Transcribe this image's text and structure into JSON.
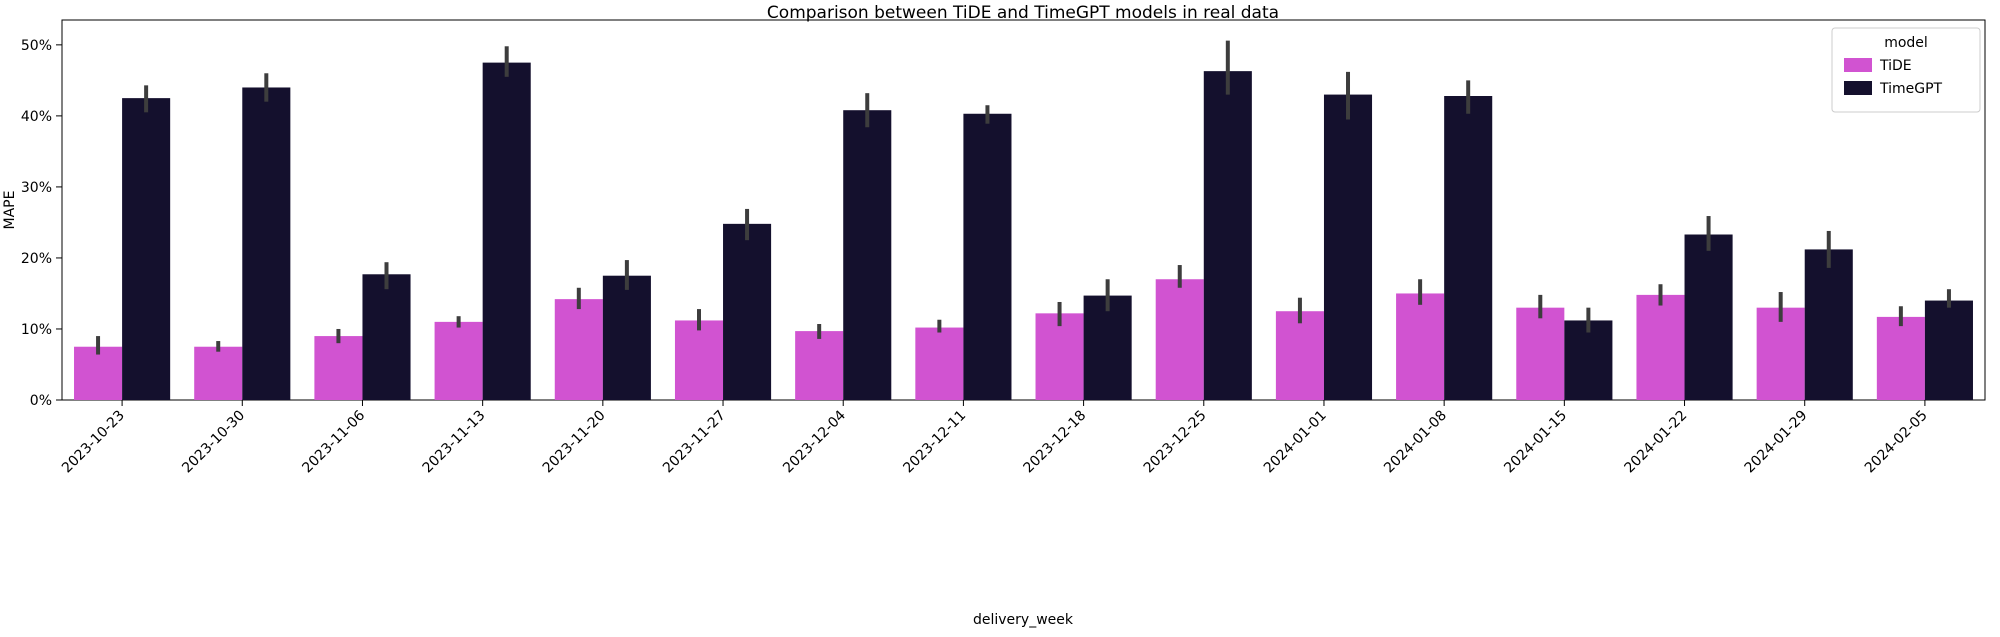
{
  "chart_data": {
    "type": "bar",
    "title": "Comparison between TiDE and TimeGPT models in real data",
    "xlabel": "delivery_week",
    "ylabel": "MAPE",
    "ylim": [
      0,
      53.5
    ],
    "yticks": [
      0,
      10,
      20,
      30,
      40,
      50
    ],
    "ytick_labels": [
      "0%",
      "10%",
      "20%",
      "30%",
      "40%",
      "50%"
    ],
    "grid": false,
    "legend_title": "model",
    "legend_position": "upper right",
    "error_bar_color": "#3d3d3d",
    "categories": [
      "2023-10-23",
      "2023-10-30",
      "2023-11-06",
      "2023-11-13",
      "2023-11-20",
      "2023-11-27",
      "2023-12-04",
      "2023-12-11",
      "2023-12-18",
      "2023-12-25",
      "2024-01-01",
      "2024-01-08",
      "2024-01-15",
      "2024-01-22",
      "2024-01-29",
      "2024-02-05"
    ],
    "series": [
      {
        "name": "TiDE",
        "color": "#d153d1",
        "values": [
          7.5,
          7.5,
          9.0,
          11.0,
          14.2,
          11.2,
          9.7,
          10.2,
          12.2,
          17.0,
          12.5,
          15.0,
          13.0,
          14.8,
          13.0,
          11.7
        ],
        "errors": [
          [
            6.4,
            9.0
          ],
          [
            6.8,
            8.3
          ],
          [
            8.0,
            10.0
          ],
          [
            10.2,
            11.8
          ],
          [
            12.8,
            15.8
          ],
          [
            9.8,
            12.8
          ],
          [
            8.6,
            10.7
          ],
          [
            9.5,
            11.3
          ],
          [
            10.4,
            13.8
          ],
          [
            15.8,
            19.0
          ],
          [
            10.8,
            14.4
          ],
          [
            13.4,
            17.0
          ],
          [
            11.5,
            14.8
          ],
          [
            13.3,
            16.3
          ],
          [
            11.0,
            15.2
          ],
          [
            10.4,
            13.2
          ]
        ]
      },
      {
        "name": "TimeGPT",
        "color": "#14102d",
        "values": [
          42.5,
          44.0,
          17.7,
          47.5,
          17.5,
          24.8,
          40.8,
          40.3,
          14.7,
          46.3,
          43.0,
          42.8,
          11.2,
          23.3,
          21.2,
          14.0
        ],
        "errors": [
          [
            40.5,
            44.3
          ],
          [
            42.0,
            46.0
          ],
          [
            15.6,
            19.4
          ],
          [
            45.5,
            49.8
          ],
          [
            15.5,
            19.7
          ],
          [
            22.5,
            26.9
          ],
          [
            38.4,
            43.2
          ],
          [
            38.9,
            41.5
          ],
          [
            12.5,
            17.0
          ],
          [
            43.0,
            50.6
          ],
          [
            39.5,
            46.2
          ],
          [
            40.3,
            45.0
          ],
          [
            9.5,
            13.0
          ],
          [
            21.0,
            25.9
          ],
          [
            18.6,
            23.8
          ],
          [
            13.0,
            15.6
          ]
        ]
      }
    ]
  }
}
